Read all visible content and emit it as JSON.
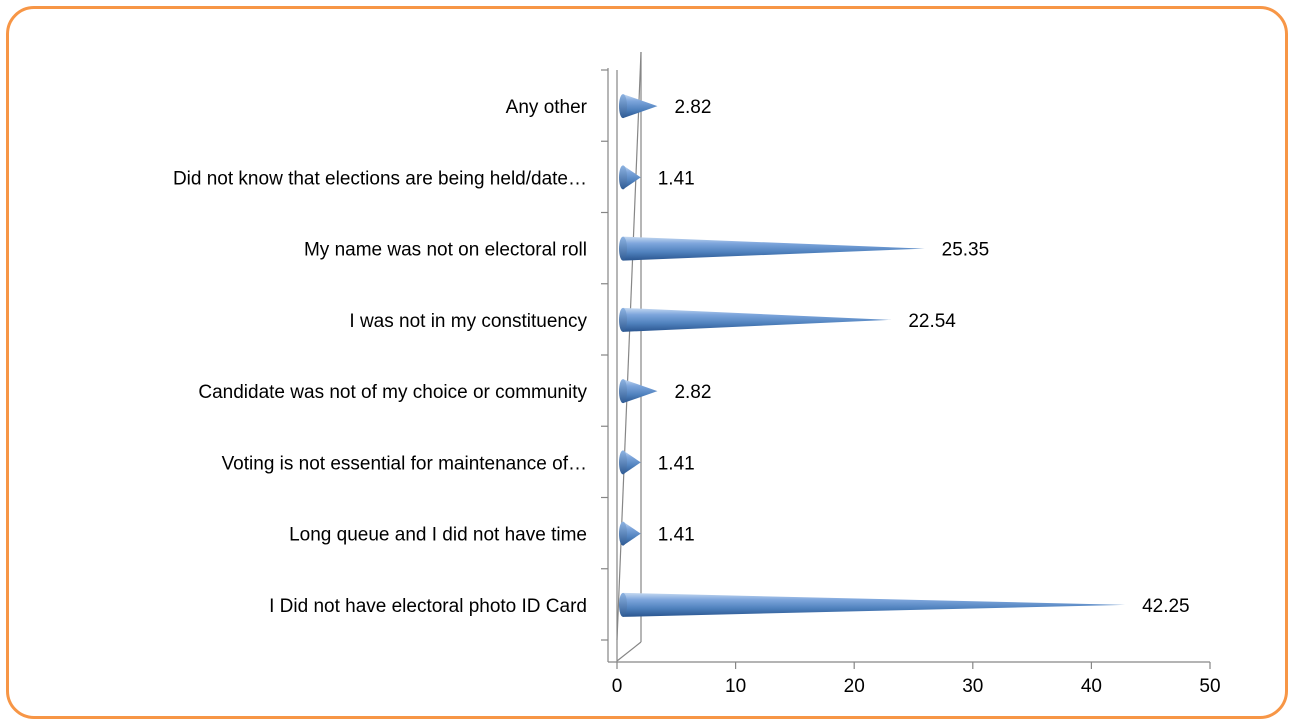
{
  "chart_data": {
    "type": "bar",
    "orientation": "horizontal",
    "style": "3d-cone",
    "title": "",
    "xlabel": "",
    "ylabel": "",
    "categories": [
      "I Did not have electoral photo ID Card",
      "Long queue and I did not have time",
      "Voting is not essential for maintenance of…",
      "Candidate was not of my choice or community",
      "I was not in my constituency",
      "My name was not on electoral roll",
      "Did not know that elections are being held/date…",
      "Any other"
    ],
    "values": [
      42.25,
      1.41,
      1.41,
      2.82,
      22.54,
      25.35,
      1.41,
      2.82
    ],
    "data_labels": [
      "42.25",
      "1.41",
      "1.41",
      "2.82",
      "22.54",
      "25.35",
      "1.41",
      "2.82"
    ],
    "xlim": [
      0,
      50
    ],
    "xticks": [
      "0",
      "10",
      "20",
      "30",
      "40",
      "50"
    ],
    "grid": false,
    "legend": "none",
    "colors": {
      "bar_dark": "#2f5b94",
      "bar_mid": "#4f81bd",
      "bar_light": "#c5d9f1",
      "axis": "#868686",
      "frame": "#f79646"
    }
  }
}
